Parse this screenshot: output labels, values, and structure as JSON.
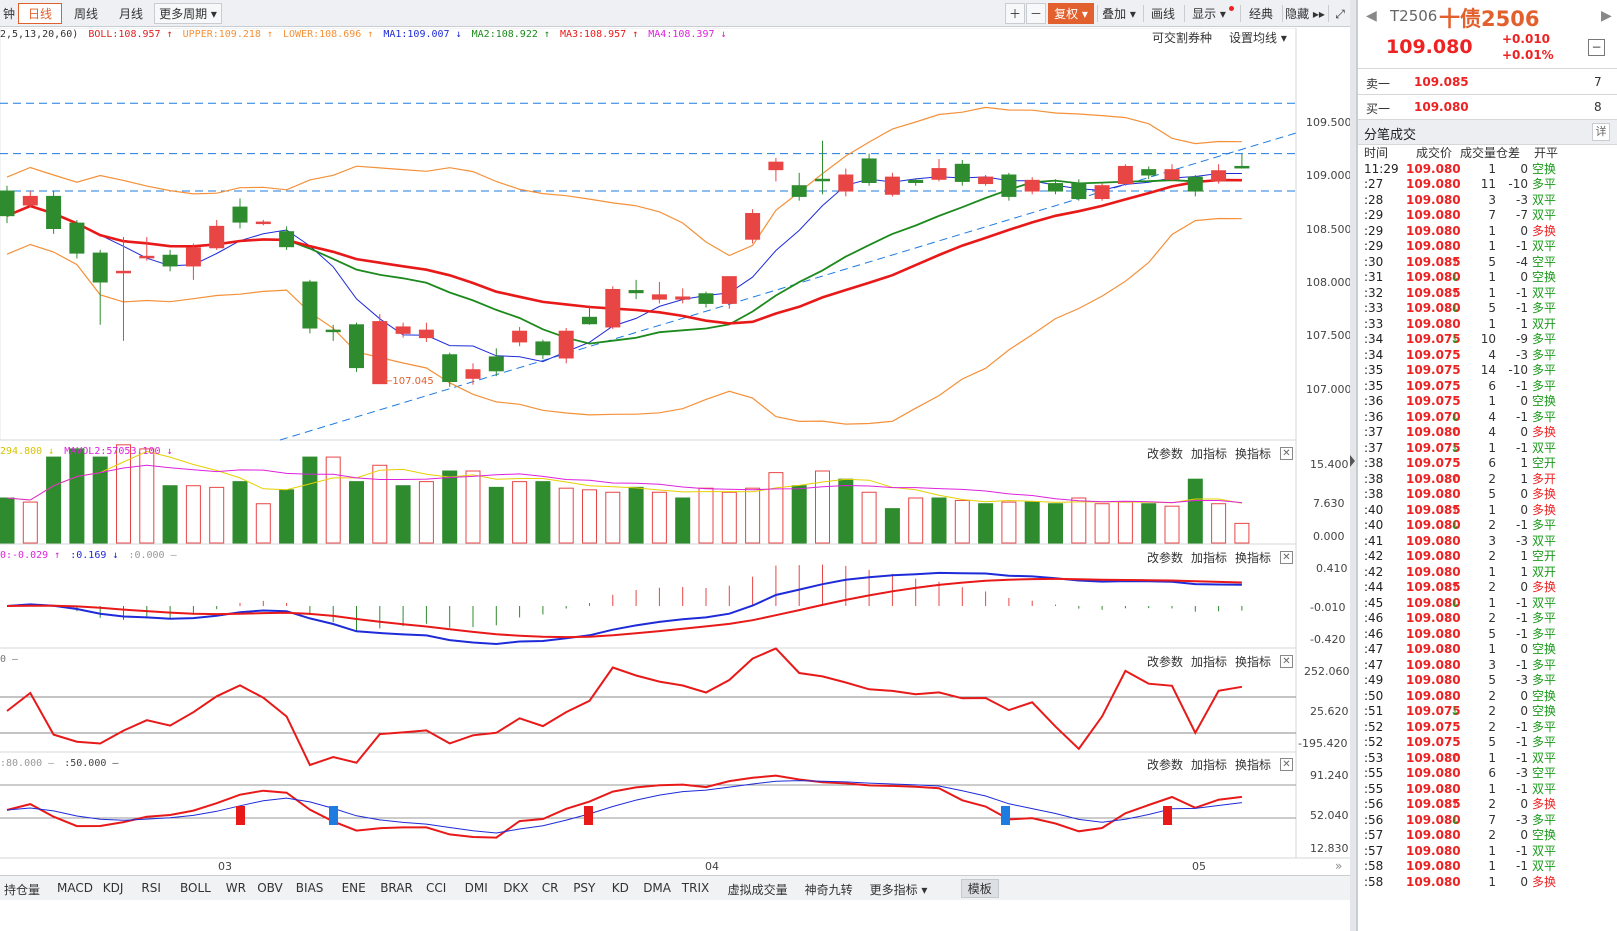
{
  "toolbar": {
    "items": [
      "钟",
      "日线",
      "周线",
      "月线",
      "更多周期 ▾"
    ],
    "right_items": [
      "＋",
      "－",
      "复权 ▾",
      "叠加 ▾",
      "画线",
      "显示 ▾",
      "经典",
      "隐藏 ▸▸",
      "⤢"
    ]
  },
  "legend": {
    "params": "2,5,13,20,60)",
    "boll": "BOLL:108.957 ↑",
    "upper": "UPPER:109.218 ↑",
    "lower": "LOWER:108.696 ↑",
    "ma1": "MA1:109.007 ↓",
    "ma2": "MA2:108.922 ↑",
    "ma3": "MA3:108.957 ↑",
    "ma4": "MA4:108.397 ↓",
    "right1": "可交割券种",
    "right2": "设置均线 ▾"
  },
  "colors": {
    "up": "#e84545",
    "down": "#2e8b2e",
    "boll": "#f4913a",
    "ma1": "#1e2bd8",
    "ma2": "#1d8a1d",
    "ma3": "#e81919",
    "ma4": "#dd22dd",
    "grid_dash": "#1e7be0"
  },
  "main_axis": [
    "109.500",
    "109.000",
    "108.500",
    "108.000",
    "107.500",
    "107.000"
  ],
  "price_note": "←107.045",
  "pane_options": [
    "改参数",
    "加指标",
    "换指标"
  ],
  "vol_legend": {
    "a": "294.800 ↓",
    "b": "MAVOL2:57053.100 ↓"
  },
  "vol_axis": [
    "15.400",
    "7.630",
    "0.000"
  ],
  "macd_legend": {
    "a": "0:-0.029 ↑",
    "b": ":0.169 ↓",
    "c": ":0.000 —"
  },
  "macd_axis": [
    "0.410",
    "-0.010",
    "-0.420"
  ],
  "cci_legend": {
    "a": "0 —"
  },
  "cci_axis": [
    "252.060",
    "25.620",
    "-195.420"
  ],
  "kdj_legend": {
    "a": ":80.000 —",
    "b": ":50.000 —"
  },
  "kdj_axis": [
    "91.240",
    "52.040",
    "12.830"
  ],
  "date_labels": [
    "03",
    "04",
    "05"
  ],
  "bottom_tabs": [
    "持仓量",
    "MACD",
    "KDJ",
    "RSI",
    "BOLL",
    "WR",
    "OBV",
    "BIAS",
    "ENE",
    "BRAR",
    "CCI",
    "DMI",
    "DKX",
    "CR",
    "PSY",
    "KD",
    "DMA",
    "TRIX",
    "虚拟成交量",
    "神奇九转",
    "更多指标 ▾",
    "模板"
  ],
  "quote": {
    "code": "T2506",
    "name": "十债2506",
    "price": "109.080",
    "change": "+0.010",
    "change_pct": "+0.01%",
    "sell_label": "卖一",
    "sell_price": "109.085",
    "sell_vol": "7",
    "buy_label": "买一",
    "buy_price": "109.080",
    "buy_vol": "8",
    "ticks_title": "分笔成交",
    "detail": "详"
  },
  "tick_headers": [
    "时间",
    "成交价",
    "成交量",
    "仓差",
    "开平"
  ],
  "ticks": [
    [
      "11:29",
      "109.080",
      "",
      "1",
      "0",
      "空换"
    ],
    [
      ":27",
      "109.080",
      "",
      "11",
      "-10",
      "多平"
    ],
    [
      ":28",
      "109.080",
      "",
      "3",
      "-3",
      "双平"
    ],
    [
      ":29",
      "109.080",
      "",
      "7",
      "-7",
      "双平"
    ],
    [
      ":29",
      "109.080",
      "",
      "1",
      "0",
      "多换"
    ],
    [
      ":29",
      "109.080",
      "",
      "1",
      "-1",
      "双平"
    ],
    [
      ":30",
      "109.085",
      "↑",
      "5",
      "-4",
      "空平"
    ],
    [
      ":31",
      "109.080",
      "↓",
      "1",
      "0",
      "空换"
    ],
    [
      ":32",
      "109.085",
      "↑",
      "1",
      "-1",
      "双平"
    ],
    [
      ":33",
      "109.080",
      "↓",
      "5",
      "-1",
      "多平"
    ],
    [
      ":33",
      "109.080",
      "",
      "1",
      "1",
      "双开"
    ],
    [
      ":34",
      "109.075",
      "↓",
      "10",
      "-9",
      "多平"
    ],
    [
      ":34",
      "109.075",
      "",
      "4",
      "-3",
      "多平"
    ],
    [
      ":35",
      "109.075",
      "",
      "14",
      "-10",
      "多平"
    ],
    [
      ":35",
      "109.075",
      "",
      "6",
      "-1",
      "多平"
    ],
    [
      ":36",
      "109.075",
      "",
      "1",
      "0",
      "空换"
    ],
    [
      ":36",
      "109.070",
      "↓",
      "4",
      "-1",
      "多平"
    ],
    [
      ":37",
      "109.080",
      "↑",
      "4",
      "0",
      "多换"
    ],
    [
      ":37",
      "109.075",
      "↓",
      "1",
      "-1",
      "双平"
    ],
    [
      ":38",
      "109.075",
      "",
      "6",
      "1",
      "空开"
    ],
    [
      ":38",
      "109.080",
      "↑",
      "2",
      "1",
      "多开"
    ],
    [
      ":38",
      "109.080",
      "",
      "5",
      "0",
      "多换"
    ],
    [
      ":40",
      "109.085",
      "↑",
      "1",
      "0",
      "多换"
    ],
    [
      ":40",
      "109.080",
      "↓",
      "2",
      "-1",
      "多平"
    ],
    [
      ":41",
      "109.080",
      "",
      "3",
      "-3",
      "双平"
    ],
    [
      ":42",
      "109.080",
      "",
      "2",
      "1",
      "空开"
    ],
    [
      ":42",
      "109.080",
      "",
      "1",
      "1",
      "双开"
    ],
    [
      ":44",
      "109.085",
      "↑",
      "2",
      "0",
      "多换"
    ],
    [
      ":45",
      "109.080",
      "↓",
      "1",
      "-1",
      "双平"
    ],
    [
      ":46",
      "109.080",
      "",
      "2",
      "-1",
      "多平"
    ],
    [
      ":46",
      "109.080",
      "",
      "5",
      "-1",
      "多平"
    ],
    [
      ":47",
      "109.080",
      "",
      "1",
      "0",
      "空换"
    ],
    [
      ":47",
      "109.080",
      "",
      "3",
      "-1",
      "多平"
    ],
    [
      ":49",
      "109.080",
      "",
      "5",
      "-3",
      "多平"
    ],
    [
      ":50",
      "109.080",
      "",
      "2",
      "0",
      "空换"
    ],
    [
      ":51",
      "109.075",
      "↓",
      "2",
      "0",
      "空换"
    ],
    [
      ":52",
      "109.075",
      "",
      "2",
      "-1",
      "多平"
    ],
    [
      ":52",
      "109.075",
      "",
      "5",
      "-1",
      "多平"
    ],
    [
      ":53",
      "109.080",
      "↑",
      "1",
      "-1",
      "双平"
    ],
    [
      ":55",
      "109.080",
      "",
      "6",
      "-3",
      "空平"
    ],
    [
      ":55",
      "109.080",
      "",
      "1",
      "-1",
      "双平"
    ],
    [
      ":56",
      "109.085",
      "↑",
      "2",
      "0",
      "多换"
    ],
    [
      ":56",
      "109.080",
      "↓",
      "7",
      "-3",
      "多平"
    ],
    [
      ":57",
      "109.080",
      "",
      "2",
      "0",
      "空换"
    ],
    [
      ":57",
      "109.080",
      "",
      "1",
      "-1",
      "双平"
    ],
    [
      ":58",
      "109.080",
      "",
      "1",
      "-1",
      "双平"
    ],
    [
      ":58",
      "109.080",
      "",
      "1",
      "0",
      "多换"
    ]
  ],
  "candles": [
    [
      "-",
      "108.85",
      "108.62",
      "108.90",
      "108.55"
    ],
    [
      "+",
      "108.72",
      "108.80",
      "108.85",
      "108.70"
    ],
    [
      "-",
      "108.80",
      "108.50",
      "108.85",
      "108.45"
    ],
    [
      "-",
      "108.55",
      "108.27",
      "108.58",
      "108.22"
    ],
    [
      "-",
      "108.27",
      "108.00",
      "108.30",
      "107.60"
    ],
    [
      "+",
      "108.10",
      "108.10",
      "108.42",
      "107.45"
    ],
    [
      "+",
      "108.24",
      "108.24",
      "108.42",
      "108.20"
    ],
    [
      "-",
      "108.25",
      "108.15",
      "108.30",
      "108.10"
    ],
    [
      "+",
      "108.15",
      "108.32",
      "108.36",
      "108.02"
    ],
    [
      "+",
      "108.32",
      "108.52",
      "108.58",
      "108.30"
    ],
    [
      "-",
      "108.56",
      "108.70",
      "108.78",
      "108.50"
    ],
    [
      "+",
      "108.56",
      "108.56",
      "108.58",
      "108.53"
    ],
    [
      "-",
      "108.47",
      "108.33",
      "108.52",
      "108.30"
    ],
    [
      "-",
      "108.00",
      "107.57",
      "108.02",
      "107.52"
    ],
    [
      "-",
      "107.55",
      "107.55",
      "107.60",
      "107.45"
    ],
    [
      "-",
      "107.60",
      "107.20",
      "107.62",
      "107.16"
    ],
    [
      "+",
      "107.05",
      "107.63",
      "107.70",
      "107.05"
    ],
    [
      "+",
      "107.52",
      "107.58",
      "107.62",
      "107.48"
    ],
    [
      "+",
      "107.48",
      "107.55",
      "107.62",
      "107.44"
    ],
    [
      "-",
      "107.32",
      "107.07",
      "107.34",
      "107.02"
    ],
    [
      "+",
      "107.10",
      "107.18",
      "107.24",
      "107.04"
    ],
    [
      "-",
      "107.30",
      "107.17",
      "107.38",
      "107.12"
    ],
    [
      "+",
      "107.44",
      "107.54",
      "107.58",
      "107.40"
    ],
    [
      "-",
      "107.44",
      "107.32",
      "107.46",
      "107.28"
    ],
    [
      "+",
      "107.29",
      "107.54",
      "107.57",
      "107.24"
    ],
    [
      "-",
      "107.67",
      "107.61",
      "107.78",
      "107.60"
    ],
    [
      "+",
      "107.58",
      "107.93",
      "107.96",
      "107.56"
    ],
    [
      "-",
      "107.92",
      "107.90",
      "108.02",
      "107.84"
    ],
    [
      "+",
      "107.84",
      "107.88",
      "108.00",
      "107.80"
    ],
    [
      "+",
      "107.84",
      "107.86",
      "107.94",
      "107.80"
    ],
    [
      "-",
      "107.89",
      "107.80",
      "107.91",
      "107.76"
    ],
    [
      "+",
      "107.80",
      "108.05",
      "108.05",
      "107.75"
    ],
    [
      "+",
      "108.40",
      "108.64",
      "108.68",
      "108.36"
    ],
    [
      "+",
      "109.05",
      "109.12",
      "109.16",
      "108.94"
    ],
    [
      "-",
      "108.90",
      "108.80",
      "109.02",
      "108.76"
    ],
    [
      "-",
      "108.96",
      "108.96",
      "109.32",
      "108.82"
    ],
    [
      "+",
      "108.85",
      "109.00",
      "109.06",
      "108.80"
    ],
    [
      "-",
      "109.15",
      "108.93",
      "109.20",
      "108.90"
    ],
    [
      "+",
      "108.82",
      "108.98",
      "109.02",
      "108.80"
    ],
    [
      "-",
      "108.93",
      "108.95",
      "108.97",
      "108.90"
    ],
    [
      "+",
      "108.96",
      "109.06",
      "109.15",
      "108.94"
    ],
    [
      "-",
      "109.10",
      "108.94",
      "109.14",
      "108.90"
    ],
    [
      "+",
      "108.92",
      "108.98",
      "109.00",
      "108.90"
    ],
    [
      "-",
      "109.00",
      "108.80",
      "109.02",
      "108.76"
    ],
    [
      "+",
      "108.85",
      "108.95",
      "108.98",
      "108.82"
    ],
    [
      "-",
      "108.92",
      "108.85",
      "108.96",
      "108.82"
    ],
    [
      "-",
      "108.92",
      "108.78",
      "108.96",
      "108.76"
    ],
    [
      "+",
      "108.78",
      "108.90",
      "108.92",
      "108.76"
    ],
    [
      "+",
      "108.92",
      "109.08",
      "109.10",
      "108.90"
    ],
    [
      "-",
      "109.00",
      "109.05",
      "109.08",
      "108.96"
    ],
    [
      "+",
      "108.96",
      "109.05",
      "109.10",
      "108.94"
    ],
    [
      "-",
      "108.98",
      "108.85",
      "109.00",
      "108.80"
    ],
    [
      "+",
      "108.95",
      "109.04",
      "109.10",
      "108.92"
    ],
    [
      "-",
      "109.08",
      "109.08",
      "109.20",
      "109.06"
    ]
  ],
  "volumes": [
    [
      "-",
      5.5
    ],
    [
      "+",
      5.0
    ],
    [
      "-",
      10.5
    ],
    [
      "-",
      11.5
    ],
    [
      "-",
      10.5
    ],
    [
      "+",
      12.0
    ],
    [
      "+",
      11.5
    ],
    [
      "-",
      7.0
    ],
    [
      "+",
      7.0
    ],
    [
      "+",
      6.8
    ],
    [
      "-",
      7.5
    ],
    [
      "+",
      4.8
    ],
    [
      "-",
      6.5
    ],
    [
      "-",
      10.5
    ],
    [
      "+",
      10.5
    ],
    [
      "-",
      7.5
    ],
    [
      "+",
      9.5
    ],
    [
      "-",
      7.0
    ],
    [
      "+",
      7.5
    ],
    [
      "-",
      8.8
    ],
    [
      "+",
      8.8
    ],
    [
      "-",
      6.8
    ],
    [
      "+",
      7.5
    ],
    [
      "-",
      7.5
    ],
    [
      "+",
      6.7
    ],
    [
      "+",
      6.5
    ],
    [
      "+",
      6.2
    ],
    [
      "-",
      6.8
    ],
    [
      "+",
      6.2
    ],
    [
      "-",
      5.5
    ],
    [
      "+",
      6.7
    ],
    [
      "+",
      6.2
    ],
    [
      "+",
      6.7
    ],
    [
      "+",
      8.6
    ],
    [
      "-",
      7.0
    ],
    [
      "+",
      8.8
    ],
    [
      "-",
      7.8
    ],
    [
      "+",
      6.2
    ],
    [
      "-",
      4.2
    ],
    [
      "+",
      5.5
    ],
    [
      "-",
      5.5
    ],
    [
      "+",
      5.2
    ],
    [
      "-",
      4.8
    ],
    [
      "+",
      5.0
    ],
    [
      "-",
      5.0
    ],
    [
      "-",
      4.8
    ],
    [
      "+",
      5.5
    ],
    [
      "+",
      4.8
    ],
    [
      "+",
      5.0
    ],
    [
      "-",
      4.8
    ],
    [
      "+",
      4.5
    ],
    [
      "-",
      7.8
    ],
    [
      "+",
      4.8
    ],
    [
      "+",
      2.4
    ]
  ]
}
